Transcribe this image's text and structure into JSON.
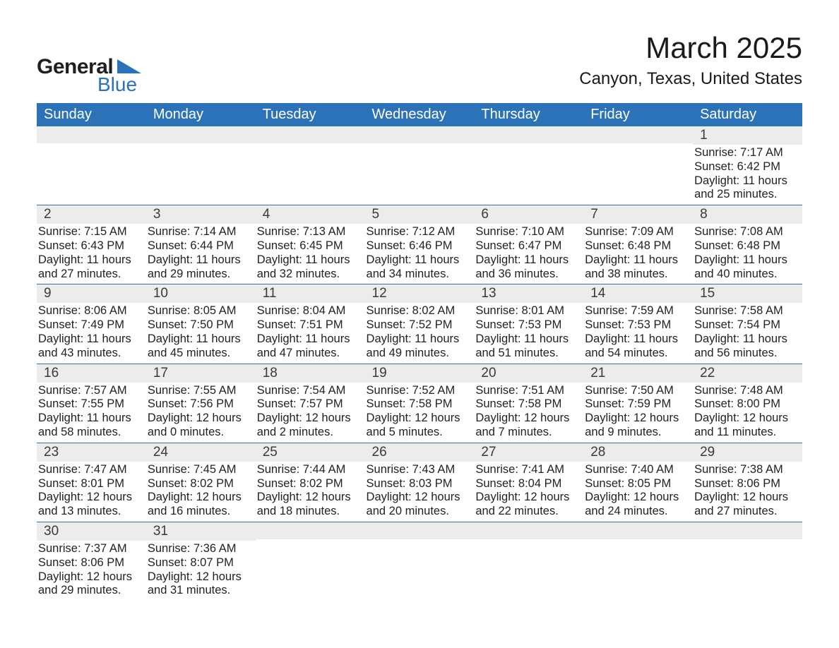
{
  "brand": {
    "name1": "General",
    "name2": "Blue",
    "accent": "#2c72b8"
  },
  "title": "March 2025",
  "location": "Canyon, Texas, United States",
  "colors": {
    "header_bg": "#2c72b8",
    "header_text": "#ffffff",
    "daynum_bg": "#ececec",
    "text": "#222222",
    "row_divider": "#2c72b8",
    "page_bg": "#ffffff"
  },
  "fonts": {
    "body_pt": 16.5,
    "title_pt": 42,
    "location_pt": 24,
    "header_pt": 20,
    "daynum_pt": 19
  },
  "weekdays": [
    "Sunday",
    "Monday",
    "Tuesday",
    "Wednesday",
    "Thursday",
    "Friday",
    "Saturday"
  ],
  "weeks": [
    [
      {
        "day": "",
        "sunrise": "",
        "sunset": "",
        "daylight1": "",
        "daylight2": ""
      },
      {
        "day": "",
        "sunrise": "",
        "sunset": "",
        "daylight1": "",
        "daylight2": ""
      },
      {
        "day": "",
        "sunrise": "",
        "sunset": "",
        "daylight1": "",
        "daylight2": ""
      },
      {
        "day": "",
        "sunrise": "",
        "sunset": "",
        "daylight1": "",
        "daylight2": ""
      },
      {
        "day": "",
        "sunrise": "",
        "sunset": "",
        "daylight1": "",
        "daylight2": ""
      },
      {
        "day": "",
        "sunrise": "",
        "sunset": "",
        "daylight1": "",
        "daylight2": ""
      },
      {
        "day": "1",
        "sunrise": "Sunrise: 7:17 AM",
        "sunset": "Sunset: 6:42 PM",
        "daylight1": "Daylight: 11 hours",
        "daylight2": "and 25 minutes."
      }
    ],
    [
      {
        "day": "2",
        "sunrise": "Sunrise: 7:15 AM",
        "sunset": "Sunset: 6:43 PM",
        "daylight1": "Daylight: 11 hours",
        "daylight2": "and 27 minutes."
      },
      {
        "day": "3",
        "sunrise": "Sunrise: 7:14 AM",
        "sunset": "Sunset: 6:44 PM",
        "daylight1": "Daylight: 11 hours",
        "daylight2": "and 29 minutes."
      },
      {
        "day": "4",
        "sunrise": "Sunrise: 7:13 AM",
        "sunset": "Sunset: 6:45 PM",
        "daylight1": "Daylight: 11 hours",
        "daylight2": "and 32 minutes."
      },
      {
        "day": "5",
        "sunrise": "Sunrise: 7:12 AM",
        "sunset": "Sunset: 6:46 PM",
        "daylight1": "Daylight: 11 hours",
        "daylight2": "and 34 minutes."
      },
      {
        "day": "6",
        "sunrise": "Sunrise: 7:10 AM",
        "sunset": "Sunset: 6:47 PM",
        "daylight1": "Daylight: 11 hours",
        "daylight2": "and 36 minutes."
      },
      {
        "day": "7",
        "sunrise": "Sunrise: 7:09 AM",
        "sunset": "Sunset: 6:48 PM",
        "daylight1": "Daylight: 11 hours",
        "daylight2": "and 38 minutes."
      },
      {
        "day": "8",
        "sunrise": "Sunrise: 7:08 AM",
        "sunset": "Sunset: 6:48 PM",
        "daylight1": "Daylight: 11 hours",
        "daylight2": "and 40 minutes."
      }
    ],
    [
      {
        "day": "9",
        "sunrise": "Sunrise: 8:06 AM",
        "sunset": "Sunset: 7:49 PM",
        "daylight1": "Daylight: 11 hours",
        "daylight2": "and 43 minutes."
      },
      {
        "day": "10",
        "sunrise": "Sunrise: 8:05 AM",
        "sunset": "Sunset: 7:50 PM",
        "daylight1": "Daylight: 11 hours",
        "daylight2": "and 45 minutes."
      },
      {
        "day": "11",
        "sunrise": "Sunrise: 8:04 AM",
        "sunset": "Sunset: 7:51 PM",
        "daylight1": "Daylight: 11 hours",
        "daylight2": "and 47 minutes."
      },
      {
        "day": "12",
        "sunrise": "Sunrise: 8:02 AM",
        "sunset": "Sunset: 7:52 PM",
        "daylight1": "Daylight: 11 hours",
        "daylight2": "and 49 minutes."
      },
      {
        "day": "13",
        "sunrise": "Sunrise: 8:01 AM",
        "sunset": "Sunset: 7:53 PM",
        "daylight1": "Daylight: 11 hours",
        "daylight2": "and 51 minutes."
      },
      {
        "day": "14",
        "sunrise": "Sunrise: 7:59 AM",
        "sunset": "Sunset: 7:53 PM",
        "daylight1": "Daylight: 11 hours",
        "daylight2": "and 54 minutes."
      },
      {
        "day": "15",
        "sunrise": "Sunrise: 7:58 AM",
        "sunset": "Sunset: 7:54 PM",
        "daylight1": "Daylight: 11 hours",
        "daylight2": "and 56 minutes."
      }
    ],
    [
      {
        "day": "16",
        "sunrise": "Sunrise: 7:57 AM",
        "sunset": "Sunset: 7:55 PM",
        "daylight1": "Daylight: 11 hours",
        "daylight2": "and 58 minutes."
      },
      {
        "day": "17",
        "sunrise": "Sunrise: 7:55 AM",
        "sunset": "Sunset: 7:56 PM",
        "daylight1": "Daylight: 12 hours",
        "daylight2": "and 0 minutes."
      },
      {
        "day": "18",
        "sunrise": "Sunrise: 7:54 AM",
        "sunset": "Sunset: 7:57 PM",
        "daylight1": "Daylight: 12 hours",
        "daylight2": "and 2 minutes."
      },
      {
        "day": "19",
        "sunrise": "Sunrise: 7:52 AM",
        "sunset": "Sunset: 7:58 PM",
        "daylight1": "Daylight: 12 hours",
        "daylight2": "and 5 minutes."
      },
      {
        "day": "20",
        "sunrise": "Sunrise: 7:51 AM",
        "sunset": "Sunset: 7:58 PM",
        "daylight1": "Daylight: 12 hours",
        "daylight2": "and 7 minutes."
      },
      {
        "day": "21",
        "sunrise": "Sunrise: 7:50 AM",
        "sunset": "Sunset: 7:59 PM",
        "daylight1": "Daylight: 12 hours",
        "daylight2": "and 9 minutes."
      },
      {
        "day": "22",
        "sunrise": "Sunrise: 7:48 AM",
        "sunset": "Sunset: 8:00 PM",
        "daylight1": "Daylight: 12 hours",
        "daylight2": "and 11 minutes."
      }
    ],
    [
      {
        "day": "23",
        "sunrise": "Sunrise: 7:47 AM",
        "sunset": "Sunset: 8:01 PM",
        "daylight1": "Daylight: 12 hours",
        "daylight2": "and 13 minutes."
      },
      {
        "day": "24",
        "sunrise": "Sunrise: 7:45 AM",
        "sunset": "Sunset: 8:02 PM",
        "daylight1": "Daylight: 12 hours",
        "daylight2": "and 16 minutes."
      },
      {
        "day": "25",
        "sunrise": "Sunrise: 7:44 AM",
        "sunset": "Sunset: 8:02 PM",
        "daylight1": "Daylight: 12 hours",
        "daylight2": "and 18 minutes."
      },
      {
        "day": "26",
        "sunrise": "Sunrise: 7:43 AM",
        "sunset": "Sunset: 8:03 PM",
        "daylight1": "Daylight: 12 hours",
        "daylight2": "and 20 minutes."
      },
      {
        "day": "27",
        "sunrise": "Sunrise: 7:41 AM",
        "sunset": "Sunset: 8:04 PM",
        "daylight1": "Daylight: 12 hours",
        "daylight2": "and 22 minutes."
      },
      {
        "day": "28",
        "sunrise": "Sunrise: 7:40 AM",
        "sunset": "Sunset: 8:05 PM",
        "daylight1": "Daylight: 12 hours",
        "daylight2": "and 24 minutes."
      },
      {
        "day": "29",
        "sunrise": "Sunrise: 7:38 AM",
        "sunset": "Sunset: 8:06 PM",
        "daylight1": "Daylight: 12 hours",
        "daylight2": "and 27 minutes."
      }
    ],
    [
      {
        "day": "30",
        "sunrise": "Sunrise: 7:37 AM",
        "sunset": "Sunset: 8:06 PM",
        "daylight1": "Daylight: 12 hours",
        "daylight2": "and 29 minutes."
      },
      {
        "day": "31",
        "sunrise": "Sunrise: 7:36 AM",
        "sunset": "Sunset: 8:07 PM",
        "daylight1": "Daylight: 12 hours",
        "daylight2": "and 31 minutes."
      },
      {
        "day": "",
        "sunrise": "",
        "sunset": "",
        "daylight1": "",
        "daylight2": ""
      },
      {
        "day": "",
        "sunrise": "",
        "sunset": "",
        "daylight1": "",
        "daylight2": ""
      },
      {
        "day": "",
        "sunrise": "",
        "sunset": "",
        "daylight1": "",
        "daylight2": ""
      },
      {
        "day": "",
        "sunrise": "",
        "sunset": "",
        "daylight1": "",
        "daylight2": ""
      },
      {
        "day": "",
        "sunrise": "",
        "sunset": "",
        "daylight1": "",
        "daylight2": ""
      }
    ]
  ]
}
